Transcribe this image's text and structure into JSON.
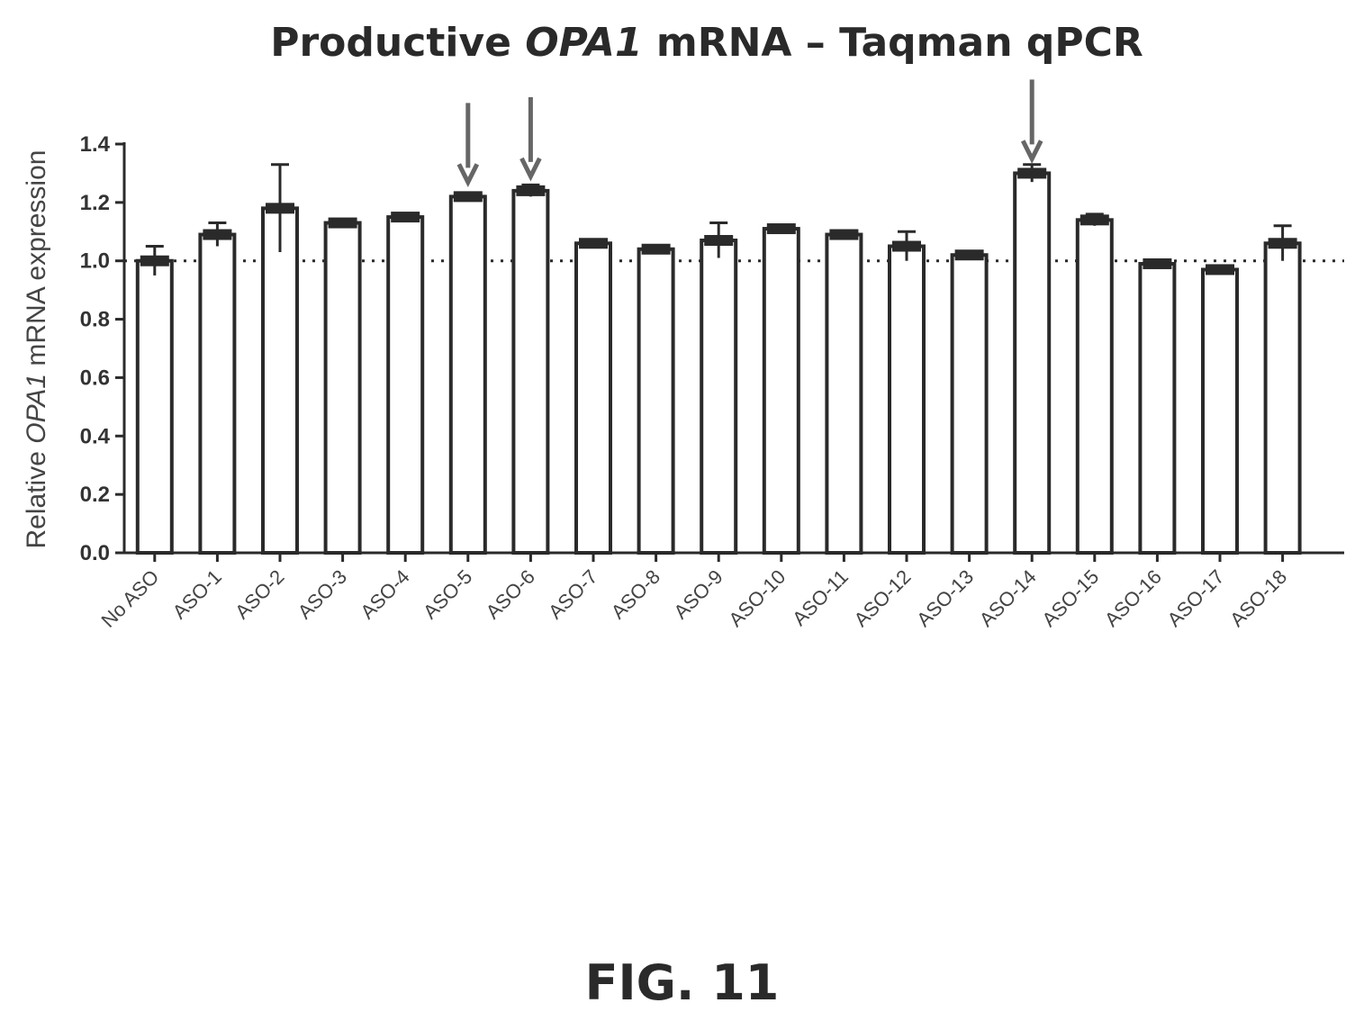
{
  "chart_data": {
    "type": "bar",
    "title_parts": [
      "Productive ",
      "OPA1",
      " mRNA – Taqman qPCR"
    ],
    "ylabel_parts": [
      "Relative ",
      "OPA1",
      "  mRNA expression"
    ],
    "xlabel": "",
    "ylim": [
      0,
      1.4
    ],
    "yticks": [
      "0.0",
      "0.2",
      "0.4",
      "0.6",
      "0.8",
      "1.0",
      "1.2",
      "1.4"
    ],
    "reference_line": 1.0,
    "categories": [
      "No ASO",
      "ASO-1",
      "ASO-2",
      "ASO-3",
      "ASO-4",
      "ASO-5",
      "ASO-6",
      "ASO-7",
      "ASO-8",
      "ASO-9",
      "ASO-10",
      "ASO-11",
      "ASO-12",
      "ASO-13",
      "ASO-14",
      "ASO-15",
      "ASO-16",
      "ASO-17",
      "ASO-18"
    ],
    "values": [
      1.0,
      1.09,
      1.18,
      1.13,
      1.15,
      1.22,
      1.24,
      1.06,
      1.04,
      1.07,
      1.11,
      1.09,
      1.05,
      1.02,
      1.3,
      1.14,
      0.99,
      0.97,
      1.06
    ],
    "errors": [
      0.05,
      0.04,
      0.15,
      0.01,
      0.01,
      0.01,
      0.02,
      0.01,
      0.01,
      0.06,
      0.01,
      0.01,
      0.05,
      0.01,
      0.03,
      0.02,
      0.01,
      0.01,
      0.06
    ],
    "highlighted": [
      "ASO-5",
      "ASO-6",
      "ASO-14"
    ],
    "grid": false
  },
  "figure_label": "FIG. 11",
  "colors": {
    "ink": "#2a2a2a",
    "arrow": "#666666",
    "bar_fill": "#ffffff"
  }
}
